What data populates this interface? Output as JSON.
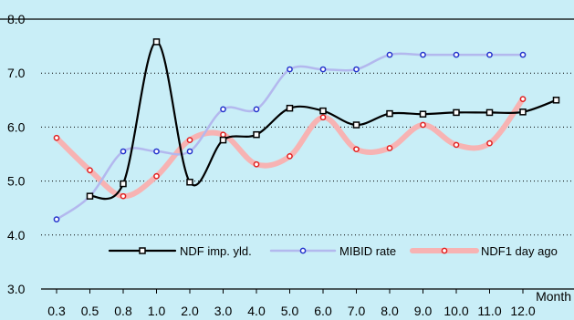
{
  "chart_data": {
    "type": "line",
    "title": "",
    "xlabel": "Month",
    "ylabel": "",
    "ylim": [
      3.0,
      8.0
    ],
    "yticks": [
      "3.0",
      "4.0",
      "5.0",
      "6.0",
      "7.0",
      "8.0"
    ],
    "categories": [
      "0.3",
      "0.5",
      "0.8",
      "1.0",
      "2.0",
      "3.0",
      "4.0",
      "5.0",
      "6.0",
      "7.0",
      "8.0",
      "9.0",
      "10.0",
      "11.0",
      "12.0"
    ],
    "legend_position": "bottom-inside",
    "colors": {
      "background": "#c9eef7",
      "ndf_imp_yld": "#000000",
      "mibid_rate": "#b3b8ee",
      "mibid_marker": "#2233cc",
      "ndf1_day_ago": "#f7b3b3",
      "ndf1_marker": "#e02020"
    },
    "series": [
      {
        "name": "NDF imp. yld.",
        "x_index": [
          1,
          2,
          3,
          4,
          5,
          6,
          7,
          8,
          9,
          10,
          11,
          12,
          13,
          14,
          15
        ],
        "values": [
          4.72,
          4.95,
          7.58,
          4.98,
          5.76,
          5.86,
          6.35,
          6.3,
          6.04,
          6.25,
          6.24,
          6.27,
          6.27,
          6.28,
          6.5
        ],
        "marker": "square"
      },
      {
        "name": "MIBID rate",
        "x_index": [
          0,
          1,
          2,
          3,
          4,
          5,
          6,
          7,
          8,
          9,
          10,
          11,
          12,
          13,
          14
        ],
        "values": [
          4.29,
          4.72,
          5.55,
          5.55,
          5.55,
          6.33,
          6.33,
          7.07,
          7.07,
          7.07,
          7.34,
          7.34,
          7.34,
          7.34,
          7.34
        ],
        "marker": "circle"
      },
      {
        "name": "NDF1 day ago",
        "x_index": [
          0,
          1,
          2,
          3,
          4,
          5,
          6,
          7,
          8,
          9,
          10,
          11,
          12,
          13,
          14
        ],
        "values": [
          5.8,
          5.2,
          4.72,
          5.09,
          5.76,
          5.86,
          5.31,
          5.46,
          6.18,
          5.59,
          5.61,
          6.04,
          5.67,
          5.7,
          6.52
        ],
        "marker": "circle"
      }
    ]
  }
}
